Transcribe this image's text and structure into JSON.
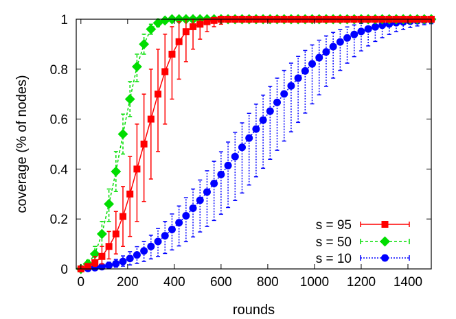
{
  "chart_data": {
    "type": "line",
    "title": "",
    "xlabel": "rounds",
    "ylabel": "coverage (% of nodes)",
    "xlim": [
      -20,
      1500
    ],
    "ylim": [
      0,
      1
    ],
    "xticks": [
      0,
      200,
      400,
      600,
      800,
      1000,
      1200,
      1400
    ],
    "yticks": [
      0,
      0.2,
      0.4,
      0.6,
      0.8,
      1
    ],
    "ytick_labels": [
      "0",
      "0.2",
      "0.4",
      "0.6",
      "0.8",
      "1"
    ],
    "grid": false,
    "legend_position": "bottom-right",
    "series": [
      {
        "name": "s = 95",
        "color": "#ff0000",
        "marker": "square",
        "line_style": "solid",
        "x": [
          0,
          30,
          60,
          90,
          120,
          150,
          180,
          210,
          240,
          270,
          300,
          330,
          360,
          390,
          420,
          450,
          480,
          510,
          540,
          570,
          600,
          630,
          660,
          690,
          720,
          750,
          780,
          810,
          840,
          870,
          900,
          930,
          960,
          990,
          1020,
          1050,
          1080,
          1110,
          1140,
          1170,
          1200,
          1230,
          1260,
          1290,
          1320,
          1350,
          1380,
          1410,
          1440,
          1470,
          1500
        ],
        "y": [
          0.0,
          0.01,
          0.025,
          0.05,
          0.09,
          0.14,
          0.21,
          0.3,
          0.4,
          0.5,
          0.6,
          0.7,
          0.79,
          0.86,
          0.91,
          0.95,
          0.97,
          0.98,
          0.99,
          0.995,
          1,
          1,
          1,
          1,
          1,
          1,
          1,
          1,
          1,
          1,
          1,
          1,
          1,
          1,
          1,
          1,
          1,
          1,
          1,
          1,
          1,
          1,
          1,
          1,
          1,
          1,
          1,
          1,
          1,
          1,
          1
        ],
        "lower": [
          0.0,
          0.005,
          0.01,
          0.02,
          0.04,
          0.06,
          0.09,
          0.13,
          0.19,
          0.27,
          0.36,
          0.47,
          0.58,
          0.68,
          0.76,
          0.83,
          0.88,
          0.92,
          0.95,
          0.97,
          0.98,
          0.99,
          0.995,
          1,
          1,
          1,
          1,
          1,
          1,
          1,
          1,
          1,
          1,
          1,
          1,
          1,
          1,
          1,
          1,
          1,
          1,
          1,
          1,
          1,
          1,
          1,
          1,
          1,
          1,
          1,
          1
        ],
        "upper": [
          0.005,
          0.02,
          0.05,
          0.09,
          0.15,
          0.23,
          0.33,
          0.45,
          0.58,
          0.7,
          0.8,
          0.88,
          0.94,
          0.97,
          0.99,
          1,
          1,
          1,
          1,
          1,
          1,
          1,
          1,
          1,
          1,
          1,
          1,
          1,
          1,
          1,
          1,
          1,
          1,
          1,
          1,
          1,
          1,
          1,
          1,
          1,
          1,
          1,
          1,
          1,
          1,
          1,
          1,
          1,
          1,
          1,
          1
        ]
      },
      {
        "name": "s = 50",
        "color": "#00dd00",
        "marker": "diamond",
        "line_style": "dashed",
        "x": [
          0,
          30,
          60,
          90,
          120,
          150,
          180,
          210,
          240,
          270,
          300,
          330,
          360,
          390,
          420,
          450,
          480,
          510,
          540,
          570,
          600,
          630,
          660,
          690,
          720,
          750,
          780,
          810,
          840,
          870,
          900,
          930,
          960,
          990,
          1020,
          1050,
          1080,
          1110,
          1140,
          1170,
          1200,
          1230,
          1260,
          1290,
          1320,
          1350,
          1380,
          1410,
          1440,
          1470,
          1500
        ],
        "y": [
          0.0,
          0.02,
          0.06,
          0.14,
          0.26,
          0.39,
          0.54,
          0.68,
          0.81,
          0.9,
          0.96,
          0.985,
          0.995,
          1,
          1,
          1,
          1,
          1,
          1,
          1,
          1,
          1,
          1,
          1,
          1,
          1,
          1,
          1,
          1,
          1,
          1,
          1,
          1,
          1,
          1,
          1,
          1,
          1,
          1,
          1,
          1,
          1,
          1,
          1,
          1,
          1,
          1,
          1,
          1,
          1,
          1
        ],
        "lower": [
          0.0,
          0.01,
          0.035,
          0.09,
          0.19,
          0.31,
          0.46,
          0.61,
          0.75,
          0.86,
          0.94,
          0.97,
          0.99,
          1,
          1,
          1,
          1,
          1,
          1,
          1,
          1,
          1,
          1,
          1,
          1,
          1,
          1,
          1,
          1,
          1,
          1,
          1,
          1,
          1,
          1,
          1,
          1,
          1,
          1,
          1,
          1,
          1,
          1,
          1,
          1,
          1,
          1,
          1,
          1,
          1,
          1
        ],
        "upper": [
          0.01,
          0.035,
          0.09,
          0.19,
          0.32,
          0.47,
          0.62,
          0.75,
          0.86,
          0.94,
          0.98,
          1,
          1,
          1,
          1,
          1,
          1,
          1,
          1,
          1,
          1,
          1,
          1,
          1,
          1,
          1,
          1,
          1,
          1,
          1,
          1,
          1,
          1,
          1,
          1,
          1,
          1,
          1,
          1,
          1,
          1,
          1,
          1,
          1,
          1,
          1,
          1,
          1,
          1,
          1,
          1
        ]
      },
      {
        "name": "s = 10",
        "color": "#0000ff",
        "marker": "circle",
        "line_style": "dotted",
        "x": [
          0,
          30,
          60,
          90,
          120,
          150,
          180,
          210,
          240,
          270,
          300,
          330,
          360,
          390,
          420,
          450,
          480,
          510,
          540,
          570,
          600,
          630,
          660,
          690,
          720,
          750,
          780,
          810,
          840,
          870,
          900,
          930,
          960,
          990,
          1020,
          1050,
          1080,
          1110,
          1140,
          1170,
          1200,
          1230,
          1260,
          1290,
          1320,
          1350,
          1380,
          1410,
          1440,
          1470,
          1500
        ],
        "y": [
          0.0,
          0.002,
          0.005,
          0.009,
          0.014,
          0.021,
          0.03,
          0.042,
          0.056,
          0.072,
          0.09,
          0.11,
          0.133,
          0.158,
          0.185,
          0.213,
          0.243,
          0.275,
          0.308,
          0.342,
          0.378,
          0.414,
          0.45,
          0.487,
          0.524,
          0.56,
          0.596,
          0.632,
          0.667,
          0.701,
          0.733,
          0.764,
          0.793,
          0.821,
          0.846,
          0.869,
          0.89,
          0.909,
          0.925,
          0.939,
          0.951,
          0.961,
          0.969,
          0.976,
          0.981,
          0.986,
          0.989,
          0.992,
          0.994,
          0.996,
          0.997
        ],
        "lower": [
          0.0,
          0.0,
          0.001,
          0.002,
          0.004,
          0.007,
          0.011,
          0.016,
          0.022,
          0.03,
          0.04,
          0.05,
          0.062,
          0.076,
          0.092,
          0.109,
          0.128,
          0.148,
          0.17,
          0.194,
          0.219,
          0.246,
          0.274,
          0.304,
          0.336,
          0.369,
          0.403,
          0.439,
          0.475,
          0.512,
          0.549,
          0.587,
          0.624,
          0.661,
          0.697,
          0.731,
          0.764,
          0.795,
          0.824,
          0.85,
          0.873,
          0.893,
          0.911,
          0.926,
          0.939,
          0.95,
          0.959,
          0.967,
          0.973,
          0.978,
          0.982
        ],
        "upper": [
          0.002,
          0.005,
          0.011,
          0.018,
          0.027,
          0.038,
          0.052,
          0.069,
          0.089,
          0.11,
          0.135,
          0.162,
          0.19,
          0.22,
          0.252,
          0.285,
          0.32,
          0.356,
          0.393,
          0.431,
          0.469,
          0.508,
          0.547,
          0.585,
          0.623,
          0.66,
          0.696,
          0.731,
          0.764,
          0.795,
          0.824,
          0.851,
          0.875,
          0.897,
          0.916,
          0.933,
          0.947,
          0.959,
          0.969,
          0.977,
          0.983,
          0.988,
          0.992,
          0.994,
          0.996,
          0.997,
          0.998,
          0.999,
          0.999,
          1,
          1
        ]
      }
    ]
  }
}
